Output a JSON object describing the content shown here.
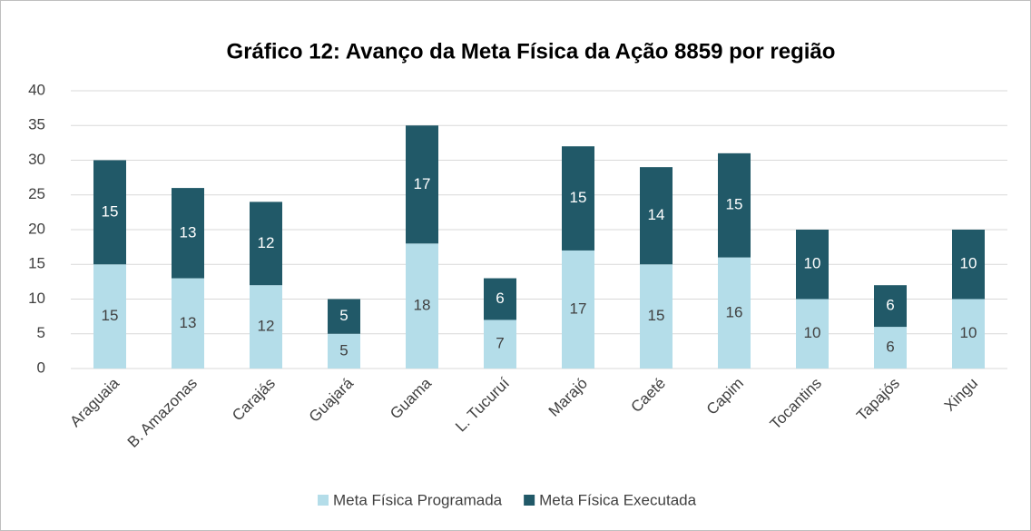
{
  "chart_data": {
    "type": "stacked_bar",
    "title": "Gráfico 12: Avanço da Meta Física da Ação 8859 por região",
    "categories": [
      "Araguaia",
      "B. Amazonas",
      "Carajás",
      "Guajará",
      "Guama",
      "L. Tucuruí",
      "Marajó",
      "Caeté",
      "Capim",
      "Tocantins",
      "Tapajós",
      "Xingu"
    ],
    "series": [
      {
        "name": "Meta Física Programada",
        "color": "#b4dde9",
        "values": [
          15,
          13,
          12,
          5,
          18,
          7,
          17,
          15,
          16,
          10,
          6,
          10
        ]
      },
      {
        "name": "Meta Física Executada",
        "color": "#215968",
        "values": [
          15,
          13,
          12,
          5,
          17,
          6,
          15,
          14,
          15,
          10,
          6,
          10
        ]
      }
    ],
    "ylim": [
      0,
      40
    ],
    "yticks": [
      0,
      5,
      10,
      15,
      20,
      25,
      30,
      35,
      40
    ],
    "grid": true,
    "legend": "bottom"
  }
}
